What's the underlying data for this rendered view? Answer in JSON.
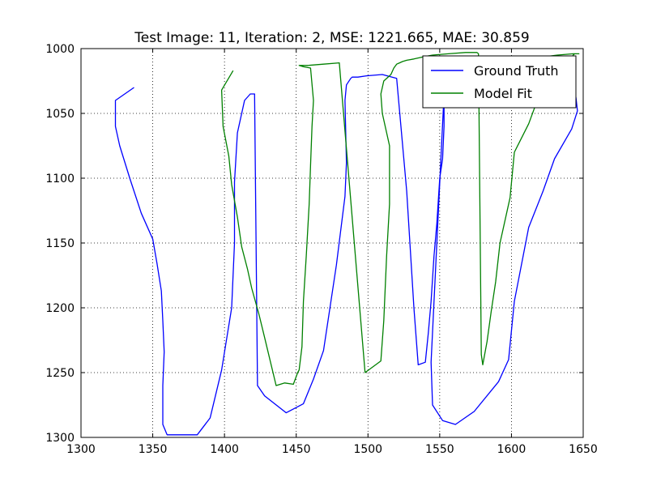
{
  "chart_data": {
    "type": "line",
    "title": "Test Image: 11, Iteration: 2, MSE: 1221.665, MAE: 30.859",
    "xlabel": "",
    "ylabel": "",
    "xlim": [
      1300,
      1650
    ],
    "ylim": [
      1300,
      1000
    ],
    "y_inverted": true,
    "xticks": [
      1300,
      1350,
      1400,
      1450,
      1500,
      1550,
      1600,
      1650
    ],
    "yticks": [
      1000,
      1050,
      1100,
      1150,
      1200,
      1250,
      1300
    ],
    "grid": true,
    "legend_position": "top-right",
    "series": [
      {
        "name": "Ground Truth",
        "color": "#0000ff",
        "x": [
          1337,
          1324,
          1324,
          1327,
          1334,
          1342,
          1350,
          1353,
          1356,
          1357,
          1358,
          1357,
          1357,
          1357,
          1360,
          1370,
          1381,
          1390,
          1398,
          1405,
          1407,
          1407,
          1409,
          1414,
          1418,
          1421,
          1421,
          1423,
          1428,
          1443,
          1455,
          1462,
          1469,
          1478,
          1484,
          1485,
          1484,
          1485,
          1488,
          1489,
          1490,
          1491,
          1491,
          1493,
          1499,
          1510,
          1520,
          1527,
          1532,
          1535,
          1540,
          1542,
          1544,
          1546,
          1548,
          1550,
          1552,
          1553,
          1553,
          1544,
          1545,
          1552,
          1561,
          1574,
          1591,
          1598,
          1602,
          1612,
          1622,
          1630,
          1642,
          1646,
          1645,
          1643,
          1641,
          1627,
          1601
        ],
        "y": [
          1030,
          1040,
          1060,
          1075,
          1100,
          1127,
          1147,
          1166,
          1187,
          1210,
          1234,
          1260,
          1278,
          1290,
          1298,
          1298,
          1298,
          1285,
          1248,
          1200,
          1150,
          1103,
          1065,
          1040,
          1035,
          1035,
          1035,
          1260,
          1268,
          1281,
          1274,
          1255,
          1233,
          1167,
          1114,
          1088,
          1040,
          1028,
          1023,
          1022,
          1022,
          1022,
          1022,
          1022,
          1021,
          1020,
          1023,
          1110,
          1200,
          1244,
          1242,
          1220,
          1195,
          1160,
          1135,
          1100,
          1085,
          1060,
          1035,
          1242,
          1275,
          1287,
          1290,
          1280,
          1257,
          1240,
          1195,
          1138,
          1110,
          1085,
          1062,
          1048,
          1038,
          1025,
          1017,
          1018,
          1021
        ]
      },
      {
        "name": "Model Fit",
        "color": "#008000",
        "x": [
          1406,
          1398,
          1399,
          1403,
          1405,
          1409,
          1412,
          1416,
          1419,
          1424,
          1428,
          1436,
          1442,
          1448,
          1451,
          1452,
          1454,
          1455,
          1457,
          1459,
          1460,
          1461,
          1462,
          1460,
          1455,
          1452,
          1458,
          1469,
          1480,
          1498,
          1509,
          1511,
          1513,
          1515,
          1515,
          1510,
          1509,
          1511,
          1516,
          1518,
          1520,
          1522,
          1524,
          1527,
          1532,
          1540,
          1545,
          1556,
          1568,
          1574,
          1576,
          1577,
          1579,
          1580,
          1583,
          1586,
          1589,
          1592,
          1599,
          1602,
          1612,
          1618,
          1630,
          1637,
          1640,
          1642,
          1643,
          1644,
          1647,
          1643,
          1632,
          1618,
          1605,
          1596,
          1590,
          1580
        ],
        "y": [
          1017,
          1032,
          1060,
          1083,
          1105,
          1130,
          1153,
          1170,
          1185,
          1205,
          1223,
          1260,
          1258,
          1259,
          1250,
          1248,
          1230,
          1195,
          1160,
          1120,
          1090,
          1060,
          1040,
          1015,
          1014,
          1013,
          1013,
          1012,
          1011,
          1250,
          1241,
          1210,
          1160,
          1120,
          1075,
          1050,
          1035,
          1025,
          1020,
          1015,
          1012,
          1011,
          1010,
          1009,
          1008,
          1006,
          1005,
          1004,
          1003,
          1003,
          1003,
          1004,
          1236,
          1244,
          1226,
          1202,
          1180,
          1150,
          1115,
          1080,
          1058,
          1040,
          1025,
          1018,
          1012,
          1008,
          1005,
          1004,
          1004,
          1004,
          1005,
          1007,
          1009,
          1012,
          1018,
          1025
        ]
      }
    ]
  }
}
